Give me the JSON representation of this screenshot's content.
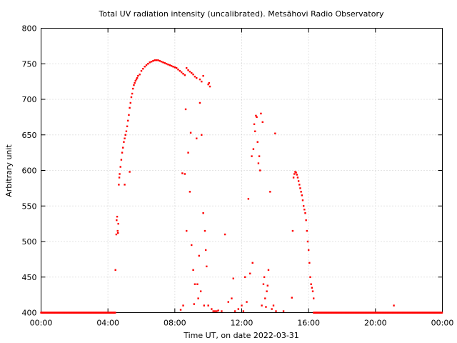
{
  "chart_data": {
    "type": "scatter",
    "title": "Total UV radiation intensity (uncalibrated). Metsähovi Radio Observatory",
    "xlabel": "Time UT, on date 2022-03-31",
    "ylabel": "Arbitrary unit",
    "xlim": [
      0,
      24
    ],
    "ylim": [
      400,
      800
    ],
    "x_ticks": [
      0,
      4,
      8,
      12,
      16,
      20,
      24
    ],
    "x_tick_labels": [
      "00:00",
      "04:00",
      "08:00",
      "12:00",
      "16:00",
      "20:00",
      "00:00"
    ],
    "y_ticks": [
      400,
      450,
      500,
      550,
      600,
      650,
      700,
      750,
      800
    ],
    "y_tick_labels": [
      "400",
      "450",
      "500",
      "550",
      "600",
      "650",
      "700",
      "750",
      "800"
    ],
    "grid": true,
    "legend": "none",
    "series_color": "#ff0000",
    "series": [
      {
        "x": [
          4.45,
          4.5,
          4.52,
          4.55,
          4.58,
          4.6,
          4.62,
          4.65,
          4.68,
          4.7,
          4.75,
          4.8,
          4.85,
          4.9,
          4.95,
          5.0,
          5.05,
          5.1,
          5.15,
          5.2,
          5.25,
          5.3,
          5.35,
          5.4,
          5.45,
          5.5,
          5.55,
          5.6,
          5.65,
          5.7,
          5.75,
          5.8,
          5.9,
          6.0,
          6.1,
          6.2,
          6.3,
          6.4,
          6.5,
          6.6,
          6.7,
          6.8,
          6.9,
          7.0,
          7.1,
          7.2,
          7.3,
          7.4,
          7.5,
          7.6,
          7.7,
          7.8,
          7.9,
          8.0,
          8.1,
          8.2,
          8.3,
          8.4,
          8.5,
          8.6,
          8.7,
          8.8,
          8.9,
          9.0,
          9.1,
          9.2,
          9.3,
          9.5,
          9.6,
          9.7,
          10.0,
          10.05,
          10.1,
          15.1,
          15.15,
          15.2,
          15.25,
          15.3,
          15.35,
          15.4,
          15.45,
          15.5,
          15.55,
          15.6,
          15.65,
          15.7,
          15.75,
          15.8,
          15.85,
          15.9,
          15.95,
          16.0,
          16.05,
          16.1,
          16.15,
          16.2,
          16.25,
          16.3
        ],
        "y": [
          460,
          510,
          530,
          535,
          515,
          512,
          525,
          580,
          590,
          595,
          605,
          615,
          625,
          632,
          640,
          645,
          650,
          655,
          662,
          670,
          678,
          688,
          695,
          703,
          708,
          715,
          720,
          723,
          726,
          728,
          730,
          733,
          735,
          740,
          743,
          746,
          748,
          750,
          752,
          753,
          754,
          755,
          755,
          755,
          754,
          753,
          752,
          751,
          750,
          749,
          748,
          747,
          746,
          745,
          744,
          742,
          740,
          738,
          736,
          734,
          744,
          741,
          739,
          737,
          735,
          732,
          730,
          728,
          725,
          733,
          721,
          723,
          718,
          590,
          595,
          598,
          597,
          594,
          590,
          585,
          580,
          575,
          570,
          565,
          558,
          550,
          545,
          540,
          530,
          515,
          500,
          488,
          470,
          450,
          440,
          435,
          430,
          420
        ]
      },
      {
        "x": [
          5.0,
          5.3,
          8.5,
          8.6,
          8.7,
          8.8,
          8.9,
          9.0,
          9.1,
          9.2,
          9.3,
          9.35,
          9.4,
          9.45,
          9.5,
          9.6,
          9.7,
          9.8,
          9.9,
          10.0,
          10.2,
          10.4,
          10.6,
          10.8,
          11.0,
          11.2,
          11.4,
          11.6,
          11.8,
          12.0,
          12.2,
          12.4,
          12.6,
          12.7,
          12.75,
          12.8,
          12.85,
          12.9,
          12.95,
          13.0,
          13.05,
          13.1,
          13.2,
          13.3,
          13.4,
          13.5,
          13.6,
          13.7,
          13.8,
          13.9,
          14.0,
          14.5,
          15.0,
          15.05,
          8.35,
          8.45,
          8.65,
          8.95,
          9.15,
          9.55,
          9.75,
          9.85,
          10.3,
          10.5,
          11.5,
          12.1,
          12.3,
          12.5,
          12.65,
          13.15,
          13.25,
          13.35,
          13.45,
          13.55,
          14.05,
          21.1
        ],
        "y": [
          580,
          598,
          410,
          595,
          515,
          625,
          570,
          495,
          460,
          440,
          645,
          440,
          420,
          480,
          695,
          650,
          540,
          515,
          465,
          410,
          405,
          402,
          403,
          402,
          510,
          415,
          420,
          402,
          405,
          410,
          450,
          560,
          620,
          630,
          665,
          655,
          677,
          675,
          640,
          610,
          620,
          600,
          410,
          440,
          420,
          430,
          460,
          570,
          405,
          410,
          652,
          402,
          421,
          515,
          404,
          596,
          686,
          653,
          412,
          430,
          410,
          488,
          402,
          402,
          448,
          402,
          415,
          455,
          470,
          680,
          668,
          450,
          408,
          438,
          402,
          410
        ]
      },
      {
        "x_start": 0.0,
        "x_end": 4.45,
        "x_start2": 16.3,
        "x_end2": 24.0,
        "y": 400
      }
    ]
  }
}
